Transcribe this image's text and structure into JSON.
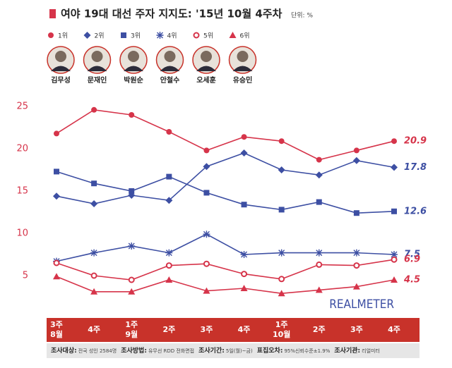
{
  "chart_data": {
    "type": "line",
    "title": "여야 19대 대선 주자 지지도: '15년 10월 4주차",
    "unit": "단위: %",
    "categories": [
      [
        "3주",
        "8월"
      ],
      [
        "4주"
      ],
      [
        "1주",
        "9월"
      ],
      [
        "2주"
      ],
      [
        "3주"
      ],
      [
        "4주"
      ],
      [
        "1주",
        "10월"
      ],
      [
        "2주"
      ],
      [
        "3주"
      ],
      [
        "4주"
      ]
    ],
    "ylim": [
      0,
      27
    ],
    "yticks": [
      5,
      10,
      15,
      20,
      25
    ],
    "grid": false,
    "series": [
      {
        "name": "1위",
        "candidate": "김무성",
        "color": "#d6344a",
        "marker": "circle",
        "values": [
          21.8,
          24.6,
          24.0,
          22.0,
          19.8,
          21.4,
          20.9,
          18.7,
          19.8,
          20.9
        ]
      },
      {
        "name": "2위",
        "candidate": "문재인",
        "color": "#3d4fa3",
        "marker": "diamond",
        "values": [
          14.4,
          13.5,
          14.5,
          13.9,
          17.9,
          19.5,
          17.5,
          16.9,
          18.6,
          17.8
        ]
      },
      {
        "name": "3위",
        "candidate": "박원순",
        "color": "#3d4fa3",
        "marker": "square",
        "values": [
          17.3,
          15.9,
          15.0,
          16.7,
          14.8,
          13.4,
          12.8,
          13.7,
          12.4,
          12.6
        ]
      },
      {
        "name": "4위",
        "candidate": "안철수",
        "color": "#3d4fa3",
        "marker": "asterisk",
        "values": [
          6.7,
          7.7,
          8.5,
          7.7,
          9.9,
          7.5,
          7.7,
          7.7,
          7.7,
          7.5
        ]
      },
      {
        "name": "5위",
        "candidate": "오세훈",
        "color": "#d6344a",
        "marker": "open-circle",
        "values": [
          6.5,
          5.0,
          4.5,
          6.2,
          6.4,
          5.2,
          4.6,
          6.3,
          6.2,
          6.9
        ]
      },
      {
        "name": "6위",
        "candidate": "유승민",
        "color": "#d6344a",
        "marker": "triangle",
        "values": [
          4.9,
          3.1,
          3.1,
          4.5,
          3.2,
          3.5,
          2.9,
          3.3,
          3.7,
          4.5
        ]
      }
    ],
    "logo": "REALMETER",
    "footer": [
      {
        "key": "조사대상:",
        "text": "전국 성인 2584명"
      },
      {
        "key": "조사방법:",
        "text": "유무선 RDD 전화면접"
      },
      {
        "key": "조사기간:",
        "text": "5일(월)~금)"
      },
      {
        "key": "표집오차:",
        "text": "95%신뢰수준±1.9%"
      },
      {
        "key": "조사기관:",
        "text": "리얼미터"
      }
    ]
  }
}
